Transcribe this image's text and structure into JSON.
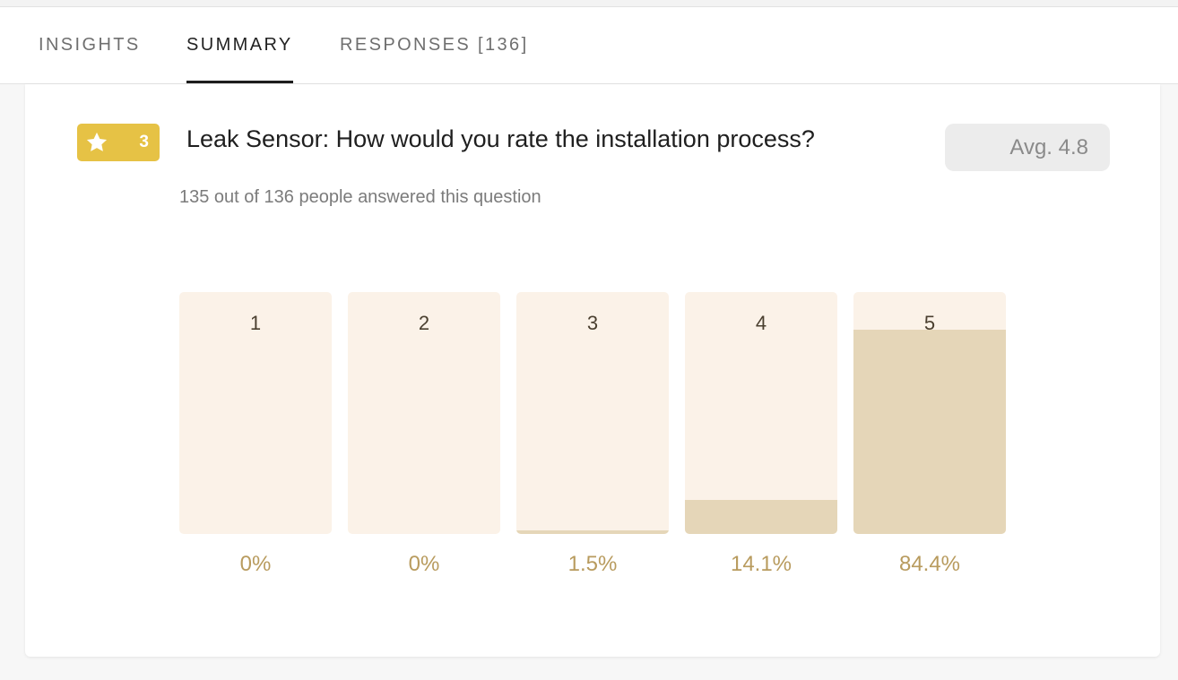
{
  "tabs": [
    {
      "label": "INSIGHTS",
      "active": false
    },
    {
      "label": "SUMMARY",
      "active": true
    },
    {
      "label": "RESPONSES [136]",
      "active": false
    }
  ],
  "question": {
    "badge_icon": "star-icon",
    "badge_number": "3",
    "title": "Leak Sensor: How would you rate the installation process?",
    "average": "Avg. 4.8",
    "answered": "135 out of 136 people answered this question"
  },
  "colors": {
    "accent_yellow": "#e6c245",
    "bar_track": "#fbf2e8",
    "bar_fill": "#e5d6b8",
    "percent_text": "#b89b5e"
  },
  "chart_data": {
    "type": "bar",
    "categories": [
      "1",
      "2",
      "3",
      "4",
      "5"
    ],
    "values": [
      0,
      0,
      1.5,
      14.1,
      84.4
    ],
    "value_labels": [
      "0%",
      "0%",
      "1.5%",
      "14.1%",
      "84.4%"
    ],
    "ylim": [
      0,
      100
    ]
  }
}
